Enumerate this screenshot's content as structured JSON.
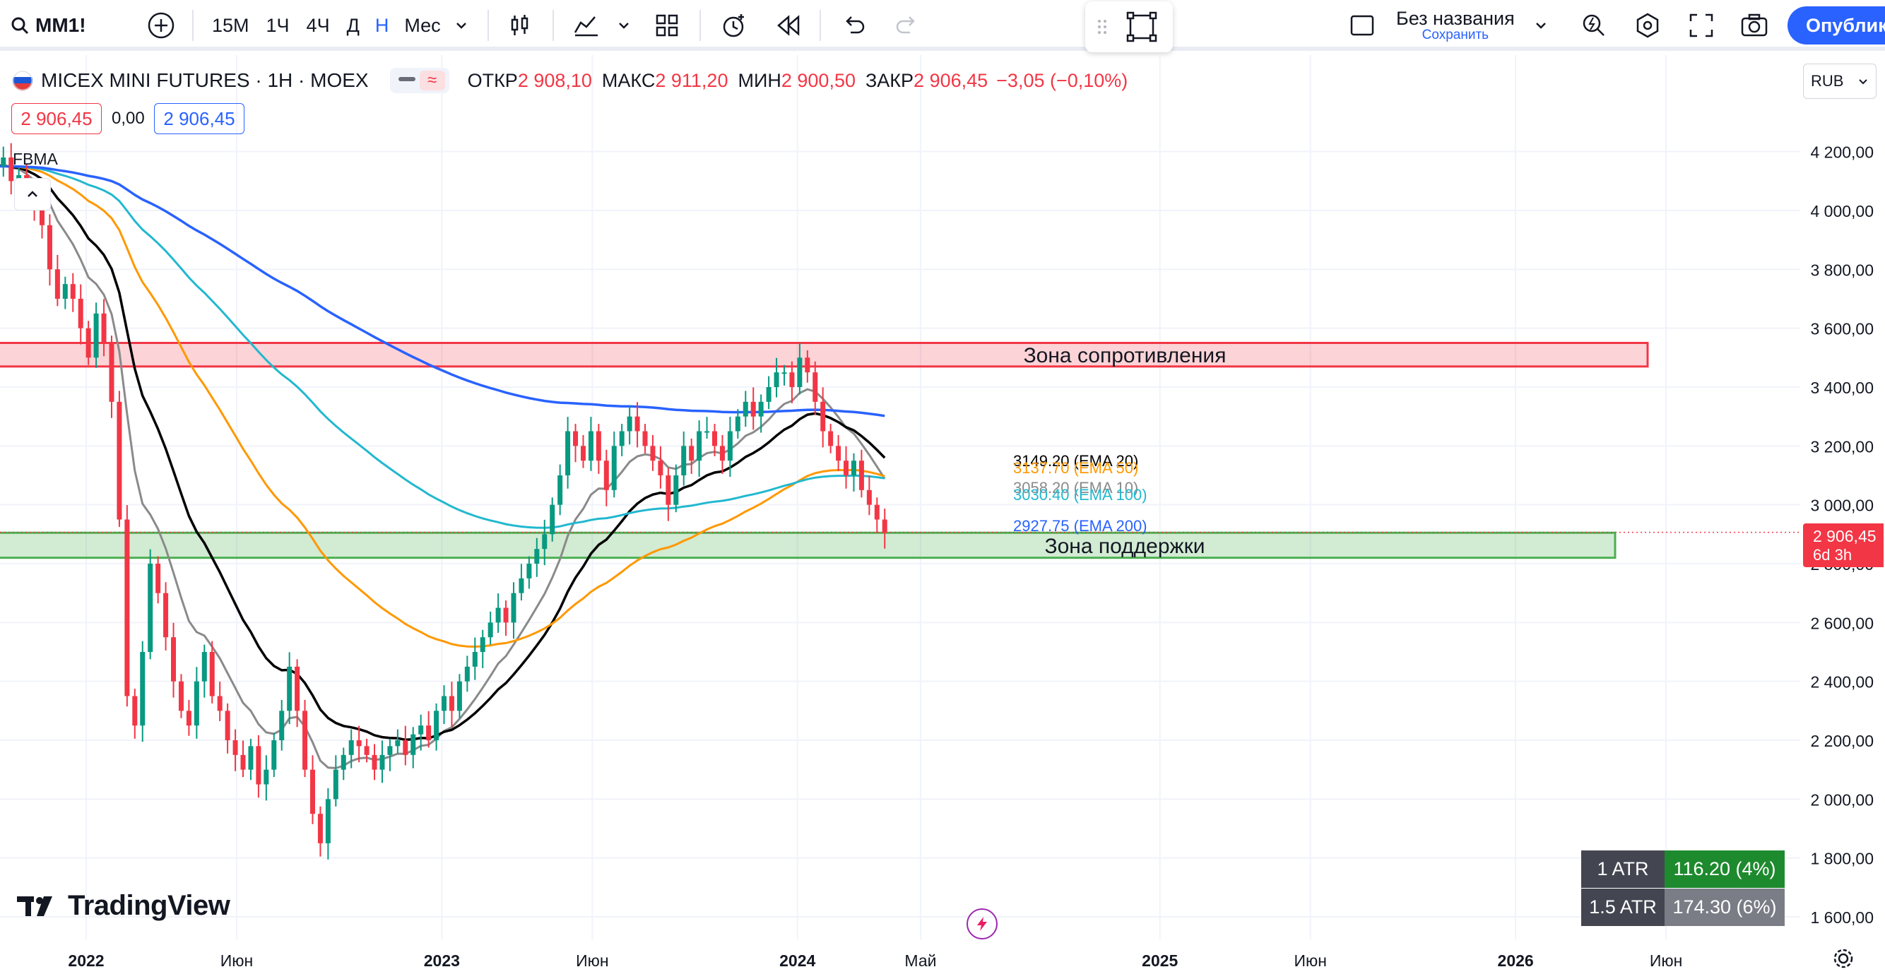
{
  "toolbar": {
    "symbol": "MM1!",
    "intervals": [
      "15М",
      "1Ч",
      "4Ч",
      "Д",
      "Н",
      "Мес"
    ],
    "active_interval": "Н",
    "layout_name": "Без названия",
    "save_label": "Сохранить",
    "publish_label": "Опублико"
  },
  "legend": {
    "title": "MICEX MINI FUTURES · 1Н · MOEX",
    "open_label": "ОТКР",
    "open": "2 908,10",
    "high_label": "МАКС",
    "high": "2 911,20",
    "low_label": "МИН",
    "low": "2 900,50",
    "close_label": "ЗАКР",
    "close": "2 906,45",
    "change": "−3,05 (−0,10%)",
    "bid": "2 906,45",
    "spread": "0,00",
    "ask": "2 906,45",
    "indicator": "FBMA"
  },
  "currency": "RUB",
  "price_label": {
    "price": "2 906,45",
    "countdown": "6d 3h"
  },
  "watermark": "TradingView",
  "atr": [
    {
      "label": "1 ATR",
      "value": "116.20 (4%)"
    },
    {
      "label": "1.5 ATR",
      "value": "174.30 (6%)"
    }
  ],
  "colors": {
    "up": "#089981",
    "down": "#f23645",
    "accent": "#2962ff",
    "ema10": "#8a8a8a",
    "ema20": "#000000",
    "ema50": "#ff9800",
    "ema100": "#22b8cf",
    "ema200": "#2962ff"
  },
  "chart_data": {
    "type": "candlestick",
    "symbol": "MICEX MINI FUTURES",
    "timeframe": "1Н",
    "y_ticks": [
      1600,
      1800,
      2000,
      2200,
      2400,
      2600,
      2800,
      3000,
      3200,
      3400,
      3600,
      3800,
      4000,
      4200
    ],
    "y_tick_labels": [
      "1 600,00",
      "1 800,00",
      "2 000,00",
      "2 200,00",
      "2 400,00",
      "2 600,00",
      "2 800,00",
      "3 000,00",
      "3 200,00",
      "3 400,00",
      "3 600,00",
      "3 800,00",
      "4 000,00",
      "4 200,00"
    ],
    "x_ticks": [
      {
        "label": "2022",
        "week": 0,
        "bold": true
      },
      {
        "label": "Июн",
        "week": 22,
        "bold": false
      },
      {
        "label": "2023",
        "week": 52,
        "bold": true
      },
      {
        "label": "Июн",
        "week": 74,
        "bold": false
      },
      {
        "label": "2024",
        "week": 104,
        "bold": true
      },
      {
        "label": "Май",
        "week": 122,
        "bold": false
      },
      {
        "label": "2025",
        "week": 157,
        "bold": true
      },
      {
        "label": "Июн",
        "week": 179,
        "bold": false
      },
      {
        "label": "2026",
        "week": 209,
        "bold": true
      },
      {
        "label": "Июн",
        "week": 231,
        "bold": false
      }
    ],
    "closes": [
      4150,
      4180,
      4100,
      4120,
      4050,
      4000,
      3950,
      3800,
      3700,
      3750,
      3700,
      3600,
      3500,
      3650,
      3550,
      3350,
      2950,
      2350,
      2250,
      2500,
      2800,
      2700,
      2550,
      2400,
      2300,
      2250,
      2400,
      2500,
      2350,
      2300,
      2200,
      2150,
      2100,
      2180,
      2050,
      2100,
      2200,
      2300,
      2450,
      2300,
      2100,
      1950,
      1850,
      2000,
      2100,
      2150,
      2200,
      2180,
      2150,
      2100,
      2150,
      2180,
      2200,
      2150,
      2220,
      2250,
      2200,
      2300,
      2350,
      2300,
      2400,
      2450,
      2500,
      2550,
      2600,
      2650,
      2600,
      2700,
      2750,
      2800,
      2850,
      2900,
      3000,
      3100,
      3250,
      3200,
      3150,
      3250,
      3150,
      3050,
      3200,
      3250,
      3300,
      3250,
      3200,
      3150,
      3100,
      3000,
      3100,
      3200,
      3150,
      3250,
      3250,
      3200,
      3150,
      3250,
      3300,
      3350,
      3300,
      3350,
      3400,
      3450,
      3450,
      3400,
      3500,
      3450,
      3350,
      3250,
      3200,
      3150,
      3100,
      3150,
      3050,
      3000,
      2950,
      2906
    ],
    "ema": [
      {
        "name": "EMA 20",
        "value": 3149.2,
        "label": "3149.20 (EMA 20)"
      },
      {
        "name": "EMA 50",
        "value": 3137.7,
        "label": "3137.70 (EMA 50)"
      },
      {
        "name": "EMA 10",
        "value": 3058.2,
        "label": "3058.20 (EMA 10)"
      },
      {
        "name": "EMA 100",
        "value": 3030.4,
        "label": "3030.40 (EMA 100)"
      },
      {
        "name": "EMA 200",
        "value": 2927.75,
        "label": "2927.75 (EMA 200)"
      }
    ],
    "zones": [
      {
        "name": "Зона сопротивления",
        "from": 3470,
        "to": 3550
      },
      {
        "name": "Зона поддержки",
        "from": 2820,
        "to": 2905
      }
    ],
    "last_price": 2906.45
  }
}
